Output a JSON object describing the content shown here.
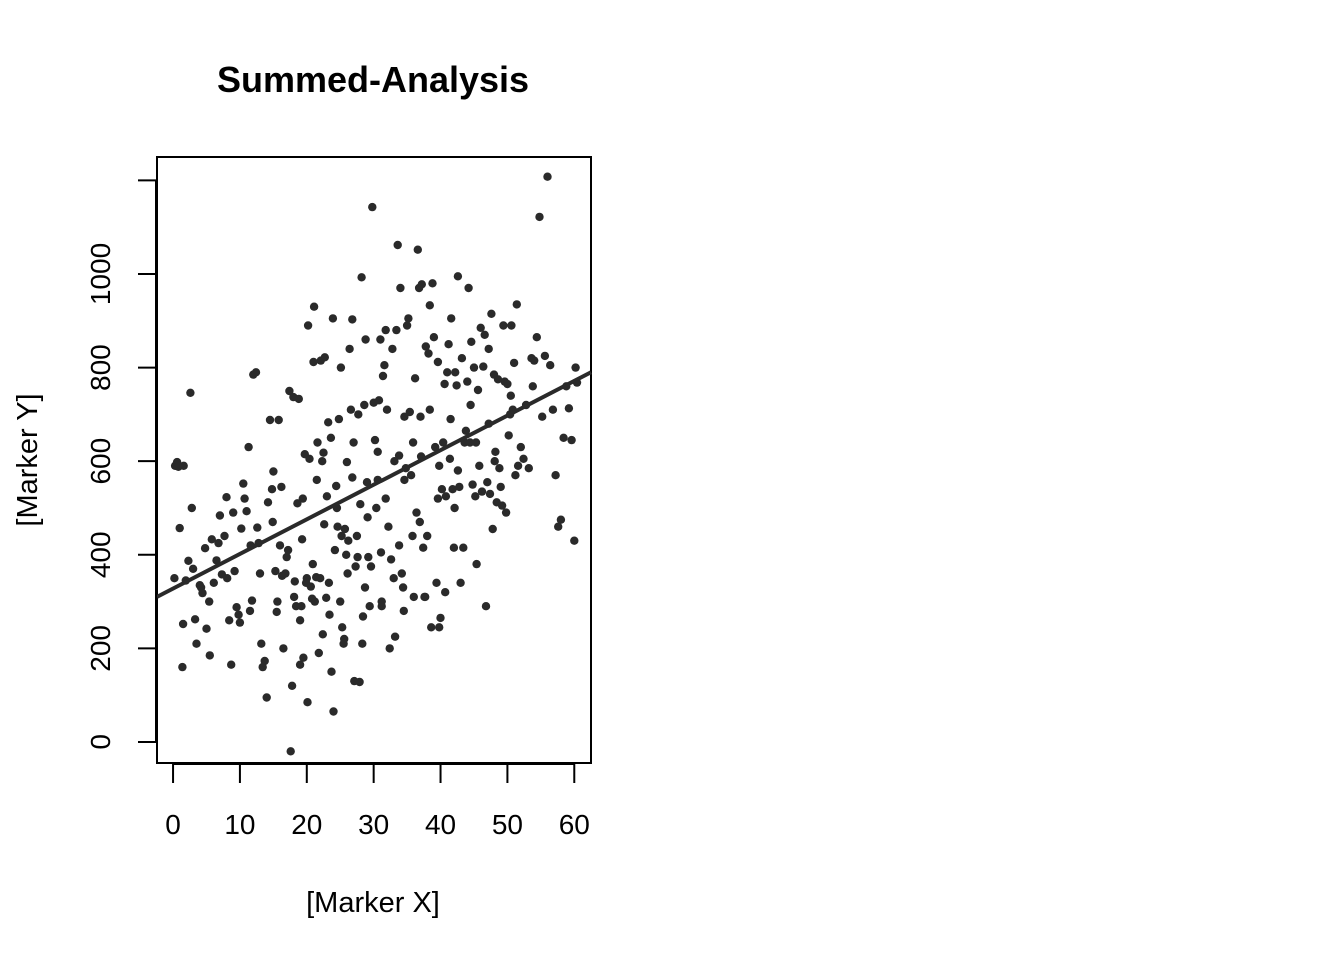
{
  "chart_data": {
    "type": "scatter",
    "title": "Summed-Analysis",
    "xlabel": "[Marker X]",
    "ylabel": "[Marker Y]",
    "xlim": [
      -2.4,
      62.5
    ],
    "ylim": [
      -45,
      1250
    ],
    "xticks": [
      0,
      10,
      20,
      30,
      40,
      50,
      60
    ],
    "yticks": [
      0,
      200,
      400,
      600,
      800,
      1000
    ],
    "grid": false,
    "legend": "none",
    "colors": {
      "points": "#2a2a2a",
      "line": "#2a2a2a",
      "axes": "#000000"
    },
    "trendline": {
      "x0": -2.4,
      "y0": 310,
      "x1": 62.5,
      "y1": 790
    },
    "points": [
      [
        0.3,
        590
      ],
      [
        0.6,
        598
      ],
      [
        0.8,
        588
      ],
      [
        0.2,
        350
      ],
      [
        1.0,
        457
      ],
      [
        1.4,
        160
      ],
      [
        1.5,
        252
      ],
      [
        1.9,
        345
      ],
      [
        2.3,
        387
      ],
      [
        2.6,
        746
      ],
      [
        2.8,
        500
      ],
      [
        3.3,
        262
      ],
      [
        3.5,
        210
      ],
      [
        4.0,
        335
      ],
      [
        4.4,
        318
      ],
      [
        4.8,
        414
      ],
      [
        5.0,
        242
      ],
      [
        5.5,
        185
      ],
      [
        5.8,
        433
      ],
      [
        6.1,
        340
      ],
      [
        6.5,
        388
      ],
      [
        7.0,
        484
      ],
      [
        7.3,
        358
      ],
      [
        7.7,
        440
      ],
      [
        8.0,
        523
      ],
      [
        8.4,
        260
      ],
      [
        8.7,
        165
      ],
      [
        9.2,
        365
      ],
      [
        9.5,
        288
      ],
      [
        9.8,
        272
      ],
      [
        10.0,
        255
      ],
      [
        10.2,
        456
      ],
      [
        10.5,
        552
      ],
      [
        10.7,
        520
      ],
      [
        11.0,
        493
      ],
      [
        11.3,
        630
      ],
      [
        11.5,
        280
      ],
      [
        11.8,
        302
      ],
      [
        12.0,
        785
      ],
      [
        12.4,
        790
      ],
      [
        12.6,
        458
      ],
      [
        12.8,
        425
      ],
      [
        13.2,
        210
      ],
      [
        13.4,
        160
      ],
      [
        13.7,
        173
      ],
      [
        14.0,
        95
      ],
      [
        14.2,
        512
      ],
      [
        14.5,
        688
      ],
      [
        14.8,
        540
      ],
      [
        15.0,
        578
      ],
      [
        15.3,
        365
      ],
      [
        15.5,
        278
      ],
      [
        15.8,
        688
      ],
      [
        16.0,
        420
      ],
      [
        16.3,
        355
      ],
      [
        16.5,
        200
      ],
      [
        16.8,
        360
      ],
      [
        17.0,
        395
      ],
      [
        17.2,
        410
      ],
      [
        17.4,
        750
      ],
      [
        17.6,
        -20
      ],
      [
        17.8,
        120
      ],
      [
        18.0,
        737
      ],
      [
        18.2,
        343
      ],
      [
        18.4,
        290
      ],
      [
        18.6,
        510
      ],
      [
        18.8,
        733
      ],
      [
        19.0,
        165
      ],
      [
        19.2,
        290
      ],
      [
        19.3,
        433
      ],
      [
        19.5,
        180
      ],
      [
        19.7,
        615
      ],
      [
        19.9,
        340
      ],
      [
        20.0,
        350
      ],
      [
        20.1,
        85
      ],
      [
        20.2,
        890
      ],
      [
        20.4,
        605
      ],
      [
        20.6,
        332
      ],
      [
        20.8,
        306
      ],
      [
        21.0,
        812
      ],
      [
        21.1,
        930
      ],
      [
        21.2,
        300
      ],
      [
        21.4,
        352
      ],
      [
        21.6,
        640
      ],
      [
        21.8,
        190
      ],
      [
        22.0,
        350
      ],
      [
        22.1,
        815
      ],
      [
        22.3,
        600
      ],
      [
        22.5,
        618
      ],
      [
        22.7,
        822
      ],
      [
        22.9,
        308
      ],
      [
        23.0,
        525
      ],
      [
        23.2,
        683
      ],
      [
        23.4,
        272
      ],
      [
        23.6,
        650
      ],
      [
        23.7,
        150
      ],
      [
        23.9,
        905
      ],
      [
        24.0,
        65
      ],
      [
        24.2,
        410
      ],
      [
        24.4,
        547
      ],
      [
        24.6,
        460
      ],
      [
        24.8,
        690
      ],
      [
        25.0,
        300
      ],
      [
        25.1,
        800
      ],
      [
        25.3,
        245
      ],
      [
        25.5,
        210
      ],
      [
        25.7,
        455
      ],
      [
        25.9,
        400
      ],
      [
        26.0,
        598
      ],
      [
        26.2,
        430
      ],
      [
        26.4,
        840
      ],
      [
        26.6,
        710
      ],
      [
        26.8,
        903
      ],
      [
        27.0,
        640
      ],
      [
        27.1,
        130
      ],
      [
        27.3,
        375
      ],
      [
        27.5,
        440
      ],
      [
        27.7,
        700
      ],
      [
        27.9,
        128
      ],
      [
        28.0,
        508
      ],
      [
        28.2,
        993
      ],
      [
        28.4,
        268
      ],
      [
        28.6,
        720
      ],
      [
        28.8,
        860
      ],
      [
        29.0,
        555
      ],
      [
        29.2,
        395
      ],
      [
        29.4,
        290
      ],
      [
        29.6,
        375
      ],
      [
        29.8,
        1143
      ],
      [
        30.0,
        725
      ],
      [
        30.2,
        645
      ],
      [
        30.4,
        500
      ],
      [
        30.6,
        560
      ],
      [
        30.8,
        730
      ],
      [
        31.0,
        860
      ],
      [
        31.2,
        300
      ],
      [
        31.4,
        782
      ],
      [
        31.6,
        805
      ],
      [
        31.8,
        880
      ],
      [
        32.0,
        710
      ],
      [
        32.2,
        460
      ],
      [
        32.4,
        200
      ],
      [
        32.6,
        390
      ],
      [
        32.8,
        840
      ],
      [
        33.0,
        350
      ],
      [
        33.2,
        225
      ],
      [
        33.4,
        880
      ],
      [
        33.6,
        1062
      ],
      [
        33.8,
        612
      ],
      [
        34.0,
        970
      ],
      [
        34.2,
        360
      ],
      [
        34.4,
        330
      ],
      [
        34.6,
        695
      ],
      [
        34.8,
        585
      ],
      [
        35.0,
        890
      ],
      [
        35.2,
        905
      ],
      [
        35.4,
        705
      ],
      [
        35.6,
        570
      ],
      [
        35.8,
        440
      ],
      [
        36.0,
        310
      ],
      [
        36.2,
        777
      ],
      [
        36.4,
        490
      ],
      [
        36.6,
        1052
      ],
      [
        36.8,
        970
      ],
      [
        37.0,
        695
      ],
      [
        37.2,
        978
      ],
      [
        37.4,
        415
      ],
      [
        37.6,
        310
      ],
      [
        37.8,
        845
      ],
      [
        38.0,
        440
      ],
      [
        38.2,
        830
      ],
      [
        38.4,
        933
      ],
      [
        38.6,
        245
      ],
      [
        38.8,
        980
      ],
      [
        39.0,
        865
      ],
      [
        39.2,
        630
      ],
      [
        39.4,
        340
      ],
      [
        39.6,
        812
      ],
      [
        39.8,
        245
      ],
      [
        40.0,
        265
      ],
      [
        40.2,
        540
      ],
      [
        40.4,
        640
      ],
      [
        40.6,
        765
      ],
      [
        40.8,
        525
      ],
      [
        41.0,
        790
      ],
      [
        41.2,
        850
      ],
      [
        41.4,
        605
      ],
      [
        41.6,
        905
      ],
      [
        41.8,
        540
      ],
      [
        42.0,
        415
      ],
      [
        42.2,
        790
      ],
      [
        42.4,
        762
      ],
      [
        42.6,
        995
      ],
      [
        42.8,
        545
      ],
      [
        43.0,
        340
      ],
      [
        43.2,
        820
      ],
      [
        43.4,
        415
      ],
      [
        43.6,
        640
      ],
      [
        43.8,
        665
      ],
      [
        44.0,
        770
      ],
      [
        44.2,
        970
      ],
      [
        44.4,
        640
      ],
      [
        44.6,
        855
      ],
      [
        44.8,
        550
      ],
      [
        45.0,
        800
      ],
      [
        45.2,
        525
      ],
      [
        45.4,
        380
      ],
      [
        45.6,
        752
      ],
      [
        45.8,
        590
      ],
      [
        46.0,
        885
      ],
      [
        46.2,
        535
      ],
      [
        46.4,
        802
      ],
      [
        46.6,
        870
      ],
      [
        46.8,
        290
      ],
      [
        47.0,
        555
      ],
      [
        47.2,
        840
      ],
      [
        47.4,
        530
      ],
      [
        47.6,
        915
      ],
      [
        47.8,
        455
      ],
      [
        48.0,
        785
      ],
      [
        48.2,
        620
      ],
      [
        48.4,
        512
      ],
      [
        48.6,
        775
      ],
      [
        48.8,
        585
      ],
      [
        49.0,
        545
      ],
      [
        49.2,
        505
      ],
      [
        49.4,
        890
      ],
      [
        49.6,
        770
      ],
      [
        49.8,
        490
      ],
      [
        50.0,
        765
      ],
      [
        50.2,
        655
      ],
      [
        50.4,
        700
      ],
      [
        50.6,
        890
      ],
      [
        50.8,
        710
      ],
      [
        51.0,
        810
      ],
      [
        51.2,
        570
      ],
      [
        51.4,
        935
      ],
      [
        51.6,
        590
      ],
      [
        52.0,
        630
      ],
      [
        52.4,
        605
      ],
      [
        52.8,
        720
      ],
      [
        53.2,
        585
      ],
      [
        53.6,
        820
      ],
      [
        54.0,
        815
      ],
      [
        54.4,
        865
      ],
      [
        54.8,
        1122
      ],
      [
        55.2,
        695
      ],
      [
        55.6,
        825
      ],
      [
        56.0,
        1208
      ],
      [
        56.4,
        805
      ],
      [
        56.8,
        710
      ],
      [
        57.2,
        570
      ],
      [
        57.6,
        460
      ],
      [
        58.0,
        475
      ],
      [
        58.4,
        650
      ],
      [
        58.8,
        760
      ],
      [
        59.2,
        713
      ],
      [
        59.6,
        645
      ],
      [
        60.0,
        430
      ],
      [
        60.2,
        800
      ],
      [
        60.4,
        768
      ],
      [
        1.6,
        590
      ],
      [
        4.2,
        330
      ],
      [
        6.8,
        425
      ],
      [
        9.0,
        490
      ],
      [
        13.0,
        360
      ],
      [
        16.2,
        545
      ],
      [
        19.4,
        520
      ],
      [
        22.6,
        465
      ],
      [
        25.2,
        440
      ],
      [
        27.6,
        395
      ],
      [
        30.6,
        620
      ],
      [
        33.1,
        600
      ],
      [
        35.9,
        640
      ],
      [
        38.4,
        710
      ],
      [
        41.5,
        690
      ],
      [
        44.5,
        720
      ],
      [
        47.2,
        680
      ],
      [
        50.5,
        740
      ],
      [
        53.8,
        760
      ],
      [
        21.5,
        560
      ],
      [
        24.5,
        500
      ],
      [
        26.8,
        565
      ],
      [
        29.1,
        480
      ],
      [
        31.8,
        520
      ],
      [
        34.6,
        560
      ],
      [
        37.1,
        610
      ],
      [
        39.8,
        590
      ],
      [
        42.6,
        580
      ],
      [
        45.3,
        640
      ],
      [
        48.1,
        600
      ],
      [
        11.6,
        420
      ],
      [
        14.9,
        470
      ],
      [
        18.1,
        310
      ],
      [
        20.9,
        380
      ],
      [
        23.3,
        340
      ],
      [
        26.1,
        360
      ],
      [
        28.7,
        330
      ],
      [
        31.1,
        405
      ],
      [
        33.8,
        420
      ],
      [
        36.9,
        470
      ],
      [
        39.6,
        520
      ],
      [
        42.1,
        500
      ],
      [
        8.1,
        350
      ],
      [
        5.4,
        300
      ],
      [
        3.0,
        370
      ],
      [
        15.6,
        300
      ],
      [
        19.0,
        260
      ],
      [
        22.4,
        230
      ],
      [
        25.6,
        220
      ],
      [
        28.3,
        210
      ],
      [
        31.2,
        290
      ],
      [
        34.5,
        280
      ],
      [
        37.7,
        310
      ],
      [
        40.7,
        320
      ]
    ]
  }
}
